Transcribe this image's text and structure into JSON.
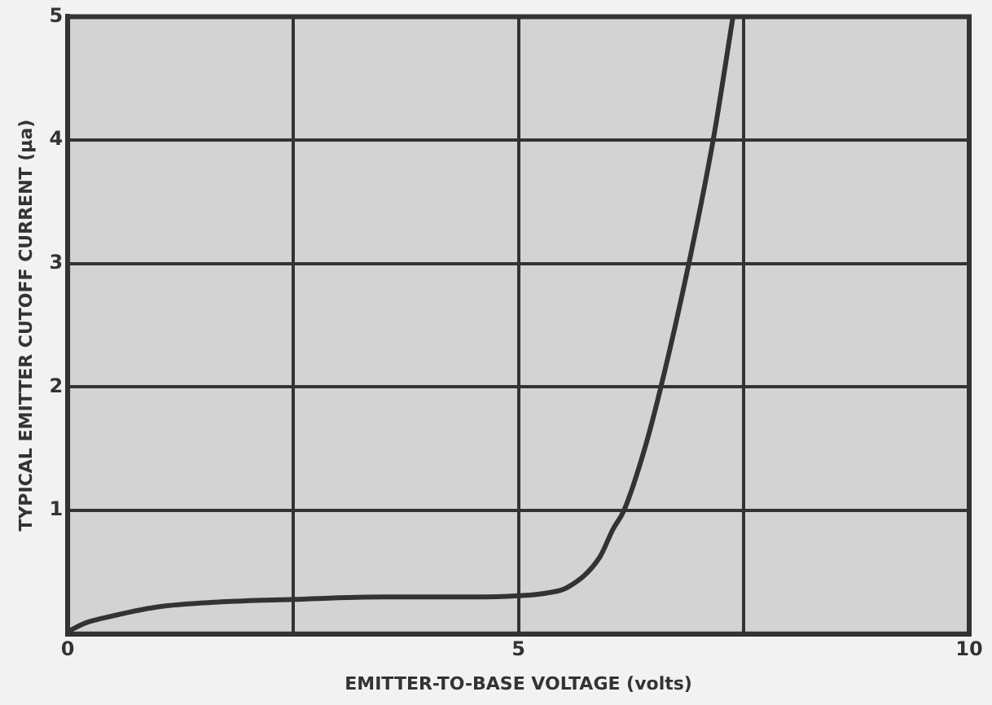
{
  "chart_data": {
    "type": "line",
    "xlabel": "EMITTER-TO-BASE VOLTAGE (volts)",
    "ylabel": "TYPICAL EMITTER CUTOFF CURRENT (μa)",
    "x": [
      0,
      0.2,
      0.4,
      1,
      1.7,
      2.5,
      3.5,
      4.5,
      5,
      5.3,
      5.55,
      5.9,
      6.05,
      6.17,
      6.4,
      6.58,
      6.89,
      7.16,
      7.38
    ],
    "series": [
      {
        "color": "#333333",
        "values": [
          0.02,
          0.09,
          0.13,
          0.22,
          0.26,
          0.28,
          0.3,
          0.3,
          0.31,
          0.33,
          0.38,
          0.62,
          0.85,
          1,
          1.5,
          2,
          3,
          4,
          5
        ]
      }
    ],
    "xlim": [
      0,
      10
    ],
    "ylim": [
      0,
      5
    ],
    "xticks": [
      0,
      {
        "value": 2.5,
        "label": null
      },
      5,
      {
        "value": 7.5,
        "label": null
      },
      10
    ],
    "yticks": [
      {
        "value": 0,
        "label": null
      },
      1,
      2,
      3,
      4,
      5
    ],
    "grid": true,
    "legend": false,
    "marker": "none",
    "line_style": "solid"
  }
}
